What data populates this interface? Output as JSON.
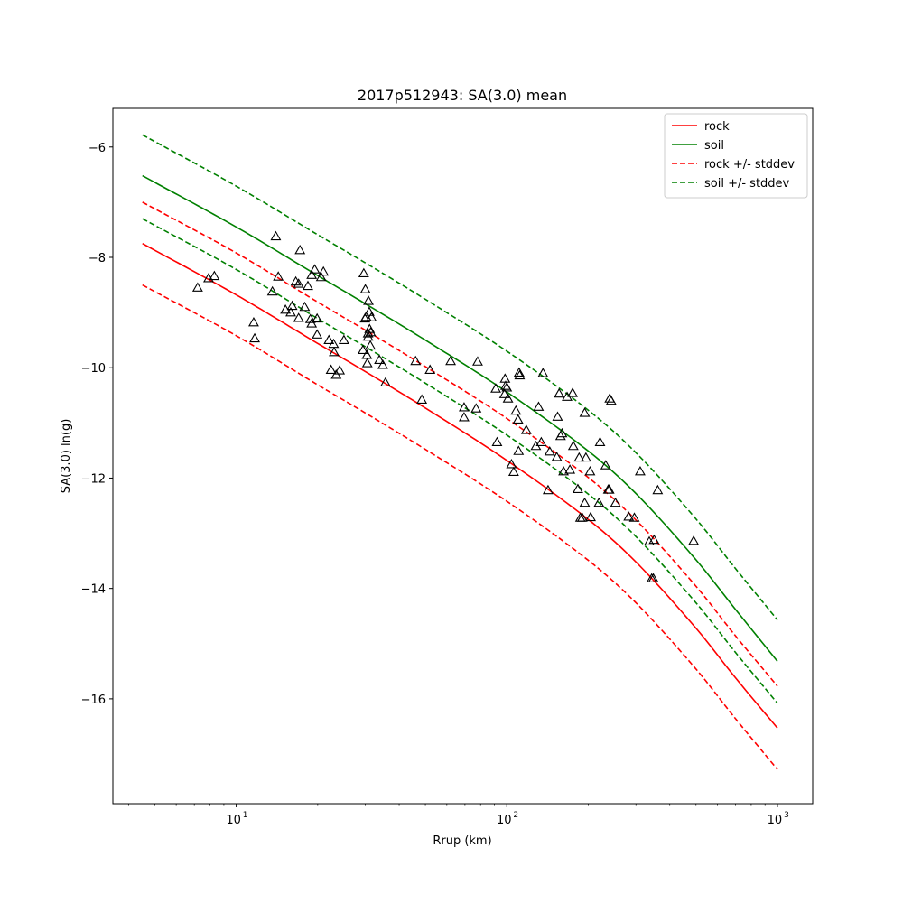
{
  "chart_data": {
    "type": "line",
    "title": "2017p512943: SA(3.0) mean",
    "xlabel": "Rrup (km)",
    "ylabel": "SA(3.0) ln(g)",
    "xscale": "log",
    "xlim": [
      3.5,
      1350
    ],
    "ylim": [
      -17.9,
      -5.3
    ],
    "x_ticks": [
      {
        "value": 10,
        "base": "10",
        "exp": "1"
      },
      {
        "value": 100,
        "base": "10",
        "exp": "2"
      },
      {
        "value": 1000,
        "base": "10",
        "exp": "3"
      }
    ],
    "y_ticks": [
      {
        "value": -6,
        "label": "−6"
      },
      {
        "value": -8,
        "label": "−8"
      },
      {
        "value": -10,
        "label": "−10"
      },
      {
        "value": -12,
        "label": "−12"
      },
      {
        "value": -14,
        "label": "−14"
      },
      {
        "value": -16,
        "label": "−16"
      }
    ],
    "grid": false,
    "legend_position": "top-right",
    "x": [
      4.5,
      10,
      20,
      30,
      50,
      100,
      200,
      300,
      500,
      700,
      1000
    ],
    "series": [
      {
        "name": "rock",
        "color": "#ff0000",
        "style": "solid",
        "values": [
          -7.75,
          -8.68,
          -9.56,
          -10.07,
          -10.73,
          -11.68,
          -12.75,
          -13.52,
          -14.72,
          -15.62,
          -16.53
        ]
      },
      {
        "name": "soil",
        "color": "#008000",
        "style": "solid",
        "values": [
          -6.52,
          -7.45,
          -8.33,
          -8.84,
          -9.5,
          -10.44,
          -11.51,
          -12.28,
          -13.48,
          -14.38,
          -15.32
        ]
      },
      {
        "name": "rock +/- stddev",
        "color": "#ff0000",
        "style": "dashed",
        "values": [
          -7.0,
          -7.92,
          -8.81,
          -9.32,
          -9.98,
          -10.92,
          -11.99,
          -12.76,
          -13.96,
          -14.86,
          -15.77
        ]
      },
      {
        "name": "rock +/- stddev",
        "color": "#ff0000",
        "style": "dashed",
        "legend": false,
        "values": [
          -8.5,
          -9.42,
          -10.31,
          -10.82,
          -11.48,
          -12.42,
          -13.49,
          -14.26,
          -15.46,
          -16.36,
          -17.28
        ]
      },
      {
        "name": "soil +/- stddev",
        "color": "#008000",
        "style": "dashed",
        "values": [
          -5.78,
          -6.71,
          -7.59,
          -8.1,
          -8.76,
          -9.7,
          -10.77,
          -11.54,
          -12.74,
          -13.64,
          -14.57
        ]
      },
      {
        "name": "soil +/- stddev",
        "color": "#008000",
        "style": "dashed",
        "legend": false,
        "values": [
          -7.3,
          -8.22,
          -9.11,
          -9.62,
          -10.28,
          -11.22,
          -12.29,
          -13.06,
          -14.26,
          -15.16,
          -16.08
        ]
      }
    ],
    "points": [
      {
        "x": 7.2,
        "y": -8.55
      },
      {
        "x": 7.9,
        "y": -8.38
      },
      {
        "x": 8.3,
        "y": -8.34
      },
      {
        "x": 11.6,
        "y": -9.18
      },
      {
        "x": 11.7,
        "y": -9.47
      },
      {
        "x": 13.6,
        "y": -8.62
      },
      {
        "x": 14.0,
        "y": -7.62
      },
      {
        "x": 14.3,
        "y": -8.35
      },
      {
        "x": 15.2,
        "y": -8.95
      },
      {
        "x": 15.9,
        "y": -9.0
      },
      {
        "x": 16.1,
        "y": -8.88
      },
      {
        "x": 16.6,
        "y": -8.44
      },
      {
        "x": 17.0,
        "y": -9.1
      },
      {
        "x": 17.0,
        "y": -8.48
      },
      {
        "x": 17.2,
        "y": -7.87
      },
      {
        "x": 17.9,
        "y": -8.9
      },
      {
        "x": 18.4,
        "y": -8.52
      },
      {
        "x": 18.8,
        "y": -9.12
      },
      {
        "x": 19.0,
        "y": -8.32
      },
      {
        "x": 19.0,
        "y": -9.2
      },
      {
        "x": 19.5,
        "y": -8.22
      },
      {
        "x": 19.9,
        "y": -9.11
      },
      {
        "x": 19.9,
        "y": -9.4
      },
      {
        "x": 20.6,
        "y": -8.36
      },
      {
        "x": 21.0,
        "y": -8.26
      },
      {
        "x": 22.0,
        "y": -9.5
      },
      {
        "x": 22.4,
        "y": -10.04
      },
      {
        "x": 22.9,
        "y": -9.57
      },
      {
        "x": 23.0,
        "y": -9.72
      },
      {
        "x": 23.4,
        "y": -10.13
      },
      {
        "x": 24.1,
        "y": -10.05
      },
      {
        "x": 25.0,
        "y": -9.5
      },
      {
        "x": 29.4,
        "y": -9.68
      },
      {
        "x": 29.6,
        "y": -8.29
      },
      {
        "x": 29.9,
        "y": -9.11
      },
      {
        "x": 30.0,
        "y": -8.58
      },
      {
        "x": 30.2,
        "y": -9.08
      },
      {
        "x": 30.4,
        "y": -9.77
      },
      {
        "x": 30.5,
        "y": -9.92
      },
      {
        "x": 30.7,
        "y": -9.44
      },
      {
        "x": 30.7,
        "y": -9.38
      },
      {
        "x": 30.8,
        "y": -8.79
      },
      {
        "x": 31.0,
        "y": -8.99
      },
      {
        "x": 31.1,
        "y": -9.3
      },
      {
        "x": 31.3,
        "y": -9.6
      },
      {
        "x": 31.4,
        "y": -9.36
      },
      {
        "x": 31.6,
        "y": -9.09
      },
      {
        "x": 33.8,
        "y": -9.86
      },
      {
        "x": 34.8,
        "y": -9.95
      },
      {
        "x": 35.6,
        "y": -10.27
      },
      {
        "x": 46.0,
        "y": -9.88
      },
      {
        "x": 48.5,
        "y": -10.58
      },
      {
        "x": 52.0,
        "y": -10.04
      },
      {
        "x": 62.0,
        "y": -9.88
      },
      {
        "x": 69.5,
        "y": -10.72
      },
      {
        "x": 69.5,
        "y": -10.9
      },
      {
        "x": 77.0,
        "y": -10.74
      },
      {
        "x": 78.0,
        "y": -9.89
      },
      {
        "x": 91.0,
        "y": -10.38
      },
      {
        "x": 92.0,
        "y": -11.35
      },
      {
        "x": 98.0,
        "y": -10.48
      },
      {
        "x": 98.5,
        "y": -10.2
      },
      {
        "x": 99.0,
        "y": -10.33
      },
      {
        "x": 100.0,
        "y": -10.36
      },
      {
        "x": 101.0,
        "y": -10.56
      },
      {
        "x": 104.0,
        "y": -11.75
      },
      {
        "x": 106.0,
        "y": -11.89
      },
      {
        "x": 108.0,
        "y": -10.78
      },
      {
        "x": 110.0,
        "y": -10.94
      },
      {
        "x": 111.0,
        "y": -10.09
      },
      {
        "x": 111.5,
        "y": -10.14
      },
      {
        "x": 110.5,
        "y": -11.51
      },
      {
        "x": 118.0,
        "y": -11.13
      },
      {
        "x": 128.0,
        "y": -11.42
      },
      {
        "x": 131.0,
        "y": -10.71
      },
      {
        "x": 134.0,
        "y": -11.35
      },
      {
        "x": 136.0,
        "y": -10.1
      },
      {
        "x": 142.0,
        "y": -12.22
      },
      {
        "x": 144.0,
        "y": -11.52
      },
      {
        "x": 153.0,
        "y": -11.62
      },
      {
        "x": 154.0,
        "y": -10.89
      },
      {
        "x": 156.0,
        "y": -10.47
      },
      {
        "x": 158.0,
        "y": -11.24
      },
      {
        "x": 160.0,
        "y": -11.19
      },
      {
        "x": 162.0,
        "y": -11.88
      },
      {
        "x": 167.0,
        "y": -10.53
      },
      {
        "x": 171.0,
        "y": -11.85
      },
      {
        "x": 175.0,
        "y": -10.46
      },
      {
        "x": 176.0,
        "y": -11.42
      },
      {
        "x": 183.0,
        "y": -12.2
      },
      {
        "x": 185.0,
        "y": -11.63
      },
      {
        "x": 187.0,
        "y": -12.72
      },
      {
        "x": 190.0,
        "y": -12.72
      },
      {
        "x": 194.0,
        "y": -12.45
      },
      {
        "x": 194.0,
        "y": -10.82
      },
      {
        "x": 196.0,
        "y": -11.63
      },
      {
        "x": 203.0,
        "y": -11.88
      },
      {
        "x": 204.0,
        "y": -12.71
      },
      {
        "x": 219.0,
        "y": -12.45
      },
      {
        "x": 221.0,
        "y": -11.35
      },
      {
        "x": 232.0,
        "y": -11.77
      },
      {
        "x": 237.0,
        "y": -12.21
      },
      {
        "x": 239.0,
        "y": -12.21
      },
      {
        "x": 240.0,
        "y": -10.56
      },
      {
        "x": 243.0,
        "y": -10.6
      },
      {
        "x": 252.0,
        "y": -12.45
      },
      {
        "x": 282.0,
        "y": -12.7
      },
      {
        "x": 296.0,
        "y": -12.72
      },
      {
        "x": 311.0,
        "y": -11.88
      },
      {
        "x": 336.0,
        "y": -13.15
      },
      {
        "x": 343.0,
        "y": -13.82
      },
      {
        "x": 348.0,
        "y": -13.82
      },
      {
        "x": 350.0,
        "y": -13.12
      },
      {
        "x": 361.0,
        "y": -12.22
      },
      {
        "x": 490.0,
        "y": -13.14
      }
    ]
  }
}
